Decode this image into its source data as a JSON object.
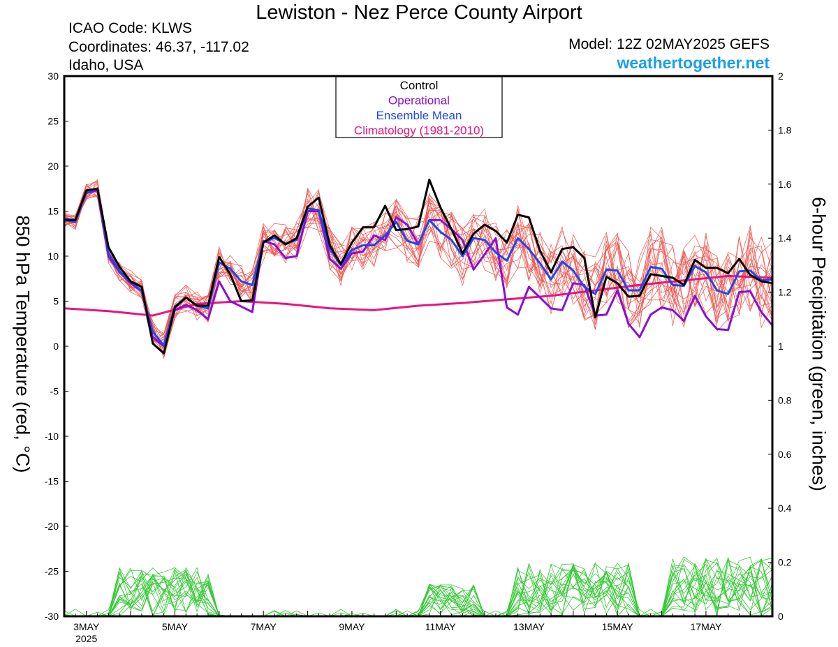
{
  "header": {
    "title": "Lewiston - Nez Perce County Airport",
    "icao": "ICAO Code: KLWS",
    "coordinates": "Coordinates: 46.37, -117.02",
    "region": "Idaho, USA",
    "model": "Model: 12Z 02MAY2025 GEFS",
    "site": "weathertogether.net"
  },
  "colors": {
    "members": "#f0554e",
    "control": "#000000",
    "operational": "#8a10d4",
    "ensemble_mean": "#2146ee",
    "climatology": "#e8157f",
    "precip": "#35c935",
    "site": "#1a9fe8"
  },
  "chart_data": {
    "type": "line",
    "left_axis": {
      "label": "850 hPa Temperature (red, °C)",
      "ylim": [
        -30,
        30
      ],
      "ticks": [
        30,
        25,
        20,
        15,
        10,
        5,
        0,
        -5,
        -10,
        -15,
        -20,
        -25,
        -30
      ],
      "tick_labels": [
        "30",
        "25",
        "20",
        "15",
        "10",
        "5",
        "0",
        "-5",
        "-10",
        "-15",
        "-20",
        "-25",
        "-30"
      ]
    },
    "right_axis": {
      "label": "6-hour Precipitation (green, inches)",
      "ylim": [
        0,
        2
      ],
      "ticks": [
        2,
        1.8,
        1.6,
        1.4,
        1.2,
        1,
        0.8,
        0.6,
        0.4,
        0.2,
        0
      ],
      "tick_labels": [
        "2",
        "1.8",
        "1.6",
        "1.4",
        "1.2",
        "1",
        "0.8",
        "0.6",
        "0.4",
        "0.2",
        "0"
      ]
    },
    "x_axis": {
      "unit": "days since 12Z 02MAY2025",
      "xlim": [
        0,
        16
      ],
      "ticks": [
        0.5,
        2.5,
        4.5,
        6.5,
        8.5,
        10.5,
        12.5,
        14.5
      ],
      "tick_labels": [
        "3MAY",
        "5MAY",
        "7MAY",
        "9MAY",
        "11MAY",
        "13MAY",
        "15MAY",
        "17MAY"
      ],
      "year_label": "2025"
    },
    "legend": {
      "position": "top-center",
      "entries": [
        {
          "name": "Control",
          "color": "#000000"
        },
        {
          "name": "Operational",
          "color": "#8a10d4"
        },
        {
          "name": "Ensemble Mean",
          "color": "#2146ee"
        },
        {
          "name": "Climatology (1981-2010)",
          "color": "#e8157f"
        }
      ]
    },
    "series": [
      {
        "name": "Control",
        "x": [
          0,
          0.25,
          0.5,
          0.75,
          1,
          1.25,
          1.5,
          1.75,
          2,
          2.25,
          2.5,
          2.75,
          3,
          3.25,
          3.5,
          3.75,
          4,
          4.25,
          4.5,
          4.75,
          5,
          5.25,
          5.5,
          5.75,
          6,
          6.25,
          6.5,
          6.75,
          7,
          7.25,
          7.5,
          7.75,
          8,
          8.25,
          8.5,
          8.75,
          9,
          9.25,
          9.5,
          9.75,
          10,
          10.25,
          10.5,
          10.75,
          11,
          11.25,
          11.5,
          11.75,
          12,
          12.25,
          12.5,
          12.75,
          13,
          13.25,
          13.5,
          13.75,
          14,
          14.25,
          14.5,
          14.75,
          15,
          15.25,
          15.5,
          15.75,
          16
        ],
        "values": [
          14,
          14,
          17.3,
          17.5,
          11,
          8.8,
          7.2,
          6.6,
          0.3,
          -0.8,
          4.3,
          5.4,
          4.5,
          4.5,
          9.9,
          8,
          5,
          5.1,
          11.5,
          12.3,
          11.3,
          12,
          15.5,
          16.5,
          11.2,
          9.1,
          11.5,
          13.2,
          13.2,
          15.6,
          12.9,
          13,
          13.3,
          18.5,
          15.4,
          13,
          10.3,
          12.5,
          13.5,
          12.8,
          11.5,
          14.6,
          14.3,
          10.6,
          8.2,
          10.8,
          11,
          9.8,
          3.2,
          7.7,
          7,
          5.5,
          5.6,
          8,
          7.8,
          7.6,
          6.8,
          9.6,
          8.7,
          8.7,
          8.1,
          9.7,
          7.9,
          7.2,
          7
        ]
      },
      {
        "name": "Operational",
        "x": [
          0,
          0.25,
          0.5,
          0.75,
          1,
          1.25,
          1.5,
          1.75,
          2,
          2.25,
          2.5,
          2.75,
          3,
          3.25,
          3.5,
          3.75,
          4,
          4.25,
          4.5,
          4.75,
          5,
          5.25,
          5.5,
          5.75,
          6,
          6.25,
          6.5,
          6.75,
          7,
          7.25,
          7.5,
          7.75,
          8,
          8.25,
          8.5,
          8.75,
          9,
          9.25,
          9.5,
          9.75,
          10,
          10.25,
          10.5,
          10.75,
          11,
          11.25,
          11.5,
          11.75,
          12,
          12.25,
          12.5,
          12.75,
          13,
          13.25,
          13.5,
          13.75,
          14,
          14.25,
          14.5,
          14.75,
          15,
          15.25,
          15.5,
          15.75,
          16
        ],
        "values": [
          14.2,
          14,
          17,
          17.3,
          10,
          8.2,
          7,
          6.1,
          1,
          0,
          4,
          4.6,
          4,
          3,
          7.2,
          5,
          4.4,
          3.8,
          11.7,
          11.3,
          9.8,
          10,
          15,
          15,
          9.7,
          8.6,
          10.3,
          10.5,
          12.3,
          11.8,
          14.3,
          13.5,
          11.3,
          14,
          14,
          13,
          11.8,
          8.5,
          10.2,
          12,
          4.3,
          3.5,
          6.6,
          5.4,
          4.2,
          4,
          7,
          6.8,
          3.4,
          3.5,
          6.2,
          2.5,
          1,
          3.5,
          4.3,
          4,
          2.8,
          5.6,
          3.3,
          1.9,
          1.8,
          6,
          6.1,
          3.8,
          2.3
        ]
      },
      {
        "name": "Ensemble Mean",
        "x": [
          0,
          0.25,
          0.5,
          0.75,
          1,
          1.25,
          1.5,
          1.75,
          2,
          2.25,
          2.5,
          2.75,
          3,
          3.25,
          3.5,
          3.75,
          4,
          4.25,
          4.5,
          4.75,
          5,
          5.25,
          5.5,
          5.75,
          6,
          6.25,
          6.5,
          6.75,
          7,
          7.25,
          7.5,
          7.75,
          8,
          8.25,
          8.5,
          8.75,
          9,
          9.25,
          9.5,
          9.75,
          10,
          10.25,
          10.5,
          10.75,
          11,
          11.25,
          11.5,
          11.75,
          12,
          12.25,
          12.5,
          12.75,
          13,
          13.25,
          13.5,
          13.75,
          14,
          14.25,
          14.5,
          14.75,
          15,
          15.25,
          15.5,
          15.75,
          16
        ],
        "values": [
          14,
          13.8,
          17.1,
          17.5,
          10.3,
          8.3,
          7.2,
          6.1,
          1.6,
          0.1,
          4.4,
          5.4,
          4.5,
          4.2,
          9.3,
          8.6,
          7.2,
          6.8,
          11.6,
          12,
          11.4,
          11.8,
          15.3,
          15.1,
          10.8,
          9,
          10.7,
          11.2,
          11.2,
          12.3,
          13.8,
          11.7,
          11.3,
          14,
          12.7,
          11.8,
          10,
          12,
          11.8,
          10.4,
          9.5,
          12,
          10.8,
          9.2,
          7.4,
          9.4,
          8.4,
          6.6,
          5.8,
          8.5,
          8.4,
          6.2,
          6.2,
          8.8,
          8.6,
          6.8,
          6.7,
          8.9,
          8.2,
          6.2,
          5.8,
          8.3,
          8.4,
          7.3,
          7.4
        ]
      },
      {
        "name": "Climatology (1981-2010)",
        "x": [
          0,
          1,
          2,
          3,
          4,
          5,
          6,
          7,
          8,
          9,
          10,
          11,
          12,
          13,
          14,
          15,
          16
        ],
        "values": [
          4.2,
          3.9,
          3.4,
          4.7,
          5,
          4.7,
          4.2,
          4,
          4.5,
          4.8,
          5.2,
          5.6,
          6.2,
          6.8,
          7.3,
          7.8,
          7.6
        ]
      }
    ]
  }
}
